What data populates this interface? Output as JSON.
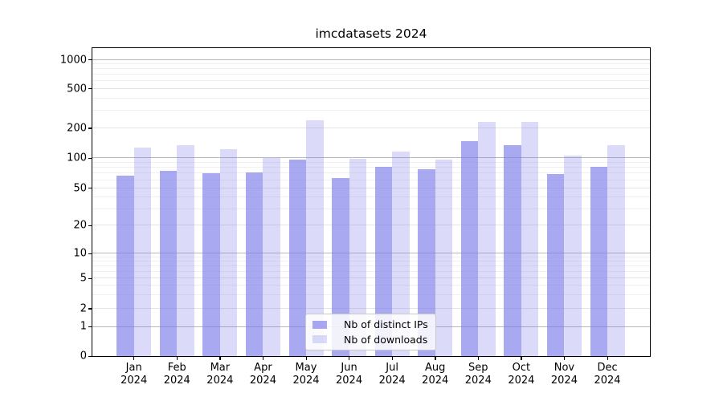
{
  "chart_data": {
    "type": "bar",
    "title": "imcdatasets 2024",
    "categories": [
      "Jan",
      "Feb",
      "Mar",
      "Apr",
      "May",
      "Jun",
      "Jul",
      "Aug",
      "Sep",
      "Oct",
      "Nov",
      "Dec"
    ],
    "category_year": "2024",
    "series": [
      {
        "name": "Nb of distinct IPs",
        "color": "#7b7be9",
        "alpha": 0.65,
        "values": [
          67,
          75,
          71,
          72,
          97,
          63,
          81,
          78,
          147,
          135,
          69,
          81
        ]
      },
      {
        "name": "Nb of downloads",
        "color": "#7b7be9",
        "alpha": 0.27,
        "values": [
          128,
          134,
          123,
          100,
          242,
          98,
          117,
          97,
          233,
          233,
          106,
          134
        ]
      }
    ],
    "yticks": [
      0,
      1,
      2,
      5,
      10,
      20,
      50,
      100,
      200,
      500,
      1000
    ],
    "y_scale": "log-like (linear 0-1 segment, log decades above)",
    "ylim": [
      0,
      1200
    ],
    "xlabel": "",
    "ylabel": "",
    "grid": "horizontal major and minor gridlines",
    "legend_position": "lower center",
    "colors": {
      "bar_dark": "#aaaaf0",
      "bar_light": "#dbdbf9",
      "grid_major": "#b8b8b8",
      "grid_mid": "#e4e4e4",
      "grid_minor": "#f0f0f0",
      "axis": "#000000"
    }
  }
}
